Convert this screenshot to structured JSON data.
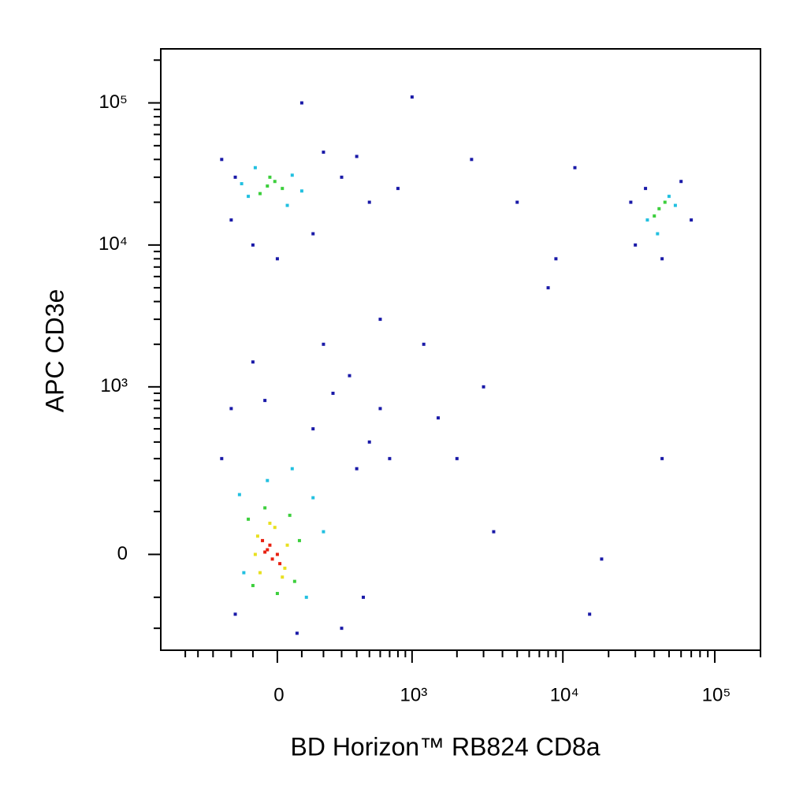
{
  "chart_data": {
    "type": "scatter",
    "xlabel": "BD Horizon™ RB824 CD8a",
    "ylabel": "APC CD3e",
    "xscale": "biexponential",
    "yscale": "biexponential",
    "xlim": [
      -750,
      200000
    ],
    "ylim": [
      -300,
      240000
    ],
    "xticks": [
      0,
      {
        "value": 1000,
        "label": "10³"
      },
      {
        "value": 10000,
        "label": "10⁴"
      },
      {
        "value": 100000,
        "label": "10⁵"
      }
    ],
    "yticks": [
      0,
      {
        "value": 1000,
        "label": "10³"
      },
      {
        "value": 10000,
        "label": "10⁴"
      },
      {
        "value": 100000,
        "label": "10⁵"
      }
    ],
    "xminorticks": [
      -500,
      -400,
      -300,
      -200,
      -100,
      100,
      200,
      300,
      400,
      500,
      600,
      700,
      800,
      900,
      2000,
      3000,
      4000,
      5000,
      6000,
      7000,
      8000,
      9000,
      20000,
      30000,
      40000,
      50000,
      60000,
      70000,
      80000,
      90000,
      200000
    ],
    "yminorticks": [
      -200,
      -100,
      100,
      200,
      300,
      400,
      500,
      600,
      700,
      800,
      900,
      2000,
      3000,
      4000,
      5000,
      6000,
      7000,
      8000,
      9000,
      20000,
      30000,
      40000,
      50000,
      60000,
      70000,
      80000,
      90000,
      200000
    ],
    "series": [
      {
        "color": "#1a1aa8",
        "x": [
          -250,
          300,
          -200,
          150,
          400,
          -100,
          250,
          500,
          80,
          -180,
          350,
          600,
          200,
          700,
          -50,
          450,
          -250,
          -200,
          200,
          -100,
          300,
          500,
          -180,
          0,
          400,
          800,
          150,
          30000,
          60000,
          35000,
          70000,
          45000,
          28000,
          1200,
          2500,
          5000,
          8000,
          3000,
          1500,
          12000,
          600,
          3500,
          2000,
          9000,
          15000,
          45000,
          18000,
          100,
          1000
        ],
        "y": [
          300,
          -200,
          700,
          500,
          250,
          1500,
          900,
          400,
          -220,
          -150,
          1200,
          700,
          2000,
          300,
          800,
          -100,
          40000,
          15000,
          45000,
          10000,
          30000,
          20000,
          30000,
          8000,
          42000,
          25000,
          12000,
          10000,
          28000,
          25000,
          15000,
          8000,
          20000,
          2000,
          40000,
          20000,
          5000,
          1000,
          600,
          35000,
          3000,
          50,
          300,
          8000,
          -150,
          300,
          -10,
          100000,
          110000
        ]
      },
      {
        "color": "#22c0e0",
        "x": [
          -160,
          120,
          -40,
          150,
          -140,
          60,
          200,
          -120,
          60,
          -90,
          40,
          -150,
          100,
          36000,
          50000,
          42000,
          55000
        ],
        "y": [
          150,
          -100,
          200,
          140,
          -40,
          250,
          50,
          22000,
          31000,
          35000,
          19000,
          27000,
          24000,
          15000,
          22000,
          12000,
          19000
        ]
      },
      {
        "color": "#3ccf3c",
        "x": [
          -120,
          70,
          -50,
          50,
          -100,
          90,
          0,
          -40,
          -10,
          -70,
          20,
          -30,
          43000,
          40000,
          47000
        ],
        "y": [
          80,
          -60,
          110,
          90,
          -70,
          30,
          -90,
          26000,
          28000,
          23000,
          25000,
          30000,
          18000,
          16000,
          20000
        ]
      },
      {
        "color": "#e8e020",
        "x": [
          -80,
          30,
          -10,
          -70,
          40,
          -30,
          20,
          -90
        ],
        "y": [
          40,
          -30,
          60,
          -40,
          20,
          70,
          -50,
          0
        ]
      },
      {
        "color": "#e82010",
        "x": [
          -40,
          -20,
          -60,
          0,
          -30,
          10,
          -50
        ],
        "y": [
          10,
          -10,
          30,
          0,
          20,
          -20,
          5
        ]
      }
    ]
  }
}
